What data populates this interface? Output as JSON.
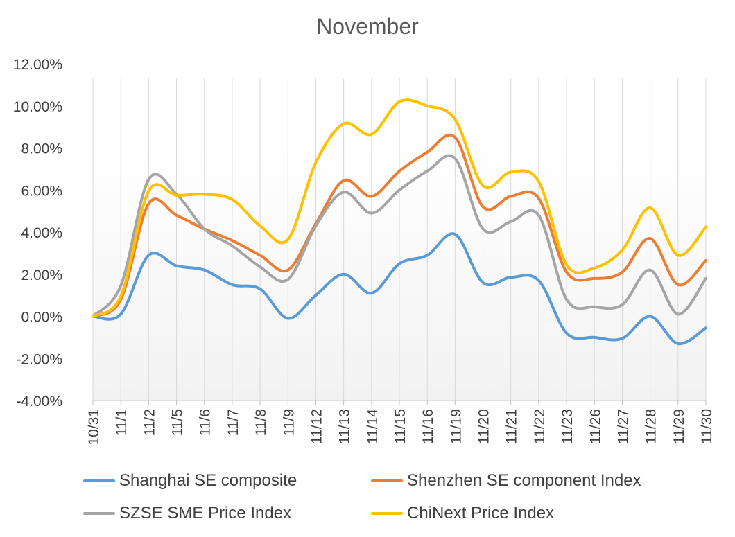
{
  "chart_data": {
    "type": "line",
    "title": "November",
    "xlabel": "",
    "ylabel": "",
    "ylim": [
      -4,
      12
    ],
    "ytick_step": 2,
    "ytick_labels": [
      "-4.00%",
      "-2.00%",
      "0.00%",
      "2.00%",
      "4.00%",
      "6.00%",
      "8.00%",
      "10.00%",
      "12.00%"
    ],
    "categories": [
      "10/31",
      "11/1",
      "11/2",
      "11/5",
      "11/6",
      "11/7",
      "11/8",
      "11/9",
      "11/12",
      "11/13",
      "11/14",
      "11/15",
      "11/16",
      "11/19",
      "11/20",
      "11/21",
      "11/22",
      "11/23",
      "11/26",
      "11/27",
      "11/28",
      "11/29",
      "11/30"
    ],
    "series": [
      {
        "name": "Shanghai SE composite",
        "color": "#5B9BD5",
        "values": [
          0.0,
          0.1,
          2.9,
          2.4,
          2.2,
          1.5,
          1.3,
          -0.1,
          1.0,
          2.0,
          1.1,
          2.5,
          2.9,
          3.9,
          1.6,
          1.85,
          1.7,
          -0.8,
          -1.0,
          -1.05,
          0.0,
          -1.3,
          -0.55
        ]
      },
      {
        "name": "Shenzhen SE component Index",
        "color": "#ED7D31",
        "values": [
          0.0,
          0.8,
          5.35,
          4.8,
          4.15,
          3.6,
          2.9,
          2.2,
          4.4,
          6.45,
          5.7,
          6.9,
          7.8,
          8.5,
          5.2,
          5.7,
          5.6,
          2.1,
          1.8,
          2.1,
          3.7,
          1.5,
          2.65
        ]
      },
      {
        "name": "SZSE SME Price Index",
        "color": "#A5A5A5",
        "values": [
          0.0,
          1.45,
          6.5,
          5.8,
          4.15,
          3.35,
          2.35,
          1.75,
          4.3,
          5.9,
          4.9,
          6.0,
          6.9,
          7.5,
          4.15,
          4.5,
          4.8,
          0.8,
          0.45,
          0.55,
          2.2,
          0.1,
          1.8
        ]
      },
      {
        "name": "ChiNext Price Index",
        "color": "#FFC000",
        "values": [
          0.0,
          0.95,
          5.95,
          5.75,
          5.8,
          5.55,
          4.3,
          3.65,
          7.3,
          9.15,
          8.65,
          10.2,
          10.0,
          9.35,
          6.2,
          6.85,
          6.4,
          2.45,
          2.3,
          3.15,
          5.15,
          2.9,
          4.25
        ]
      }
    ],
    "legend_position": "bottom",
    "grid": "vertical"
  }
}
